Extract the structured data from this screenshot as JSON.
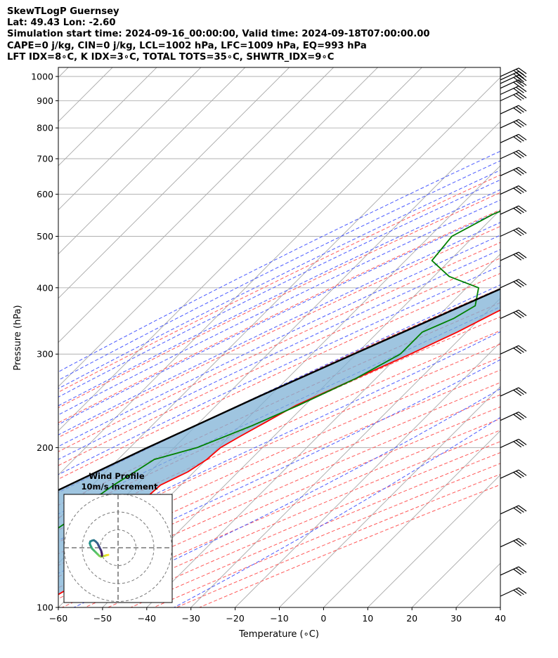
{
  "header": {
    "line1": "SkewTLogP Guernsey",
    "line2": "Lat: 49.43   Lon: -2.60",
    "line3": "Simulation start time: 2024-09-16_00:00:00, Valid time: 2024-09-18T07:00:00.00",
    "line4": "CAPE=0 j/kg, CIN=0 j/kg, LCL=1002 hPa, LFC=1009 hPa, EQ=993 hPa",
    "line5": "LFT IDX=8∘C, K IDX=3∘C, TOTAL TOTS=35∘C, SHWTR_IDX=9∘C"
  },
  "colors": {
    "temperature": "#ff0000",
    "dewpoint": "#008000",
    "parcel": "#000000",
    "cape_fill": "#7fb1d5",
    "dry_adiabat": "#ff5a5a",
    "moist_adiabat": "#4a5aff",
    "mixing_ratio": "#9a30b0",
    "isotherm": "#a8a8a8"
  },
  "chart_data": {
    "type": "line",
    "title": "",
    "xlabel": "Temperature (∘C)",
    "ylabel": "Pressure (hPa)",
    "xlim": [
      -60,
      40
    ],
    "ylim": [
      1040,
      100
    ],
    "y_scale": "log",
    "skew": true,
    "grid": true,
    "x_ticks": [
      "−60",
      "−50",
      "−40",
      "−30",
      "−20",
      "−10",
      "0",
      "10",
      "20",
      "30",
      "40"
    ],
    "x_tick_values": [
      -60,
      -50,
      -40,
      -30,
      -20,
      -10,
      0,
      10,
      20,
      30,
      40
    ],
    "y_ticks": [
      "100",
      "200",
      "300",
      "400",
      "500",
      "600",
      "700",
      "800",
      "900",
      "1000"
    ],
    "y_tick_values": [
      100,
      200,
      300,
      400,
      500,
      600,
      700,
      800,
      900,
      1000
    ],
    "series": [
      {
        "name": "Temperature",
        "pressure": [
          1015,
          990,
          950,
          900,
          850,
          800,
          750,
          700,
          650,
          600,
          550,
          500,
          450,
          400,
          360,
          330,
          300,
          270,
          240,
          210,
          200,
          190,
          180,
          170,
          160,
          150,
          140,
          130,
          120,
          110,
          100
        ],
        "temperature": [
          15.6,
          17.4,
          16.4,
          14.2,
          12.6,
          10.4,
          7.6,
          4.5,
          1.4,
          -2.3,
          -6.4,
          -10.9,
          -16.0,
          -22.0,
          -27.8,
          -32.1,
          -37.7,
          -44.5,
          -52.0,
          -57.6,
          -59.5,
          -59.9,
          -61.4,
          -64.6,
          -65.0,
          -62.4,
          -60.2,
          -60.0,
          -59.6,
          -61.5,
          -65.0
        ]
      },
      {
        "name": "Dewpoint",
        "pressure": [
          1015,
          960,
          900,
          850,
          800,
          750,
          700,
          650,
          600,
          550,
          500,
          450,
          420,
          400,
          370,
          350,
          330,
          300,
          270,
          240,
          220,
          200,
          190,
          180,
          170,
          160,
          150,
          140,
          130,
          120,
          110,
          100
        ],
        "temperature": [
          14.3,
          12.2,
          11.2,
          9.0,
          5.8,
          -7.5,
          -22.6,
          -36.0,
          -44.2,
          -50.7,
          -55.0,
          -54.0,
          -46.5,
          -37.3,
          -34.0,
          -36.0,
          -40.0,
          -40.0,
          -44.5,
          -51.5,
          -57.3,
          -64.8,
          -71.8,
          -73.4,
          -75.2,
          -76.5,
          -76.5,
          -78.2,
          -79.8,
          -80.5,
          -81.3,
          -84.0
        ]
      },
      {
        "name": "Parcel",
        "pressure": [
          1015,
          1000,
          950,
          900,
          850,
          800,
          750,
          700,
          650,
          600,
          550,
          500,
          450,
          400,
          350,
          300,
          250,
          200,
          150,
          100
        ],
        "temperature": [
          16.0,
          15.1,
          12.8,
          10.5,
          8.0,
          5.3,
          2.4,
          -0.8,
          -4.4,
          -8.4,
          -13.0,
          -18.3,
          -24.5,
          -31.8,
          -40.5,
          -50.5,
          -62.3,
          -76.0,
          -92.5,
          -113.0
        ]
      }
    ],
    "wind_barbs": {
      "pressure": [
        1000,
        985,
        970,
        950,
        925,
        900,
        850,
        800,
        750,
        700,
        650,
        600,
        550,
        500,
        450,
        400,
        350,
        300,
        250,
        225,
        200,
        175,
        150,
        130,
        115,
        105
      ]
    },
    "hodograph": {
      "title": "Wind Profile",
      "subtitle": "10m/s increment",
      "u": [
        -5.5,
        -6.5,
        -7.5,
        -8.5,
        -9.5,
        -10.5,
        -11.5,
        -12.5,
        -13.5,
        -14.5,
        -15.0,
        -15.5,
        -15.8,
        -15.5,
        -14.5,
        -13.5,
        -12.5,
        -11.5,
        -11.0,
        -10.5,
        -10.0,
        -9.5,
        -9.2,
        -9.0,
        -9.0
      ],
      "v": [
        -4.0,
        -4.2,
        -4.5,
        -4.8,
        -5.0,
        -4.5,
        -3.5,
        -2.5,
        -1.5,
        -0.5,
        0.5,
        1.5,
        2.5,
        3.5,
        4.0,
        4.2,
        3.5,
        2.5,
        1.5,
        0.5,
        -0.5,
        -1.5,
        -2.5,
        -3.5,
        -4.5
      ]
    }
  }
}
